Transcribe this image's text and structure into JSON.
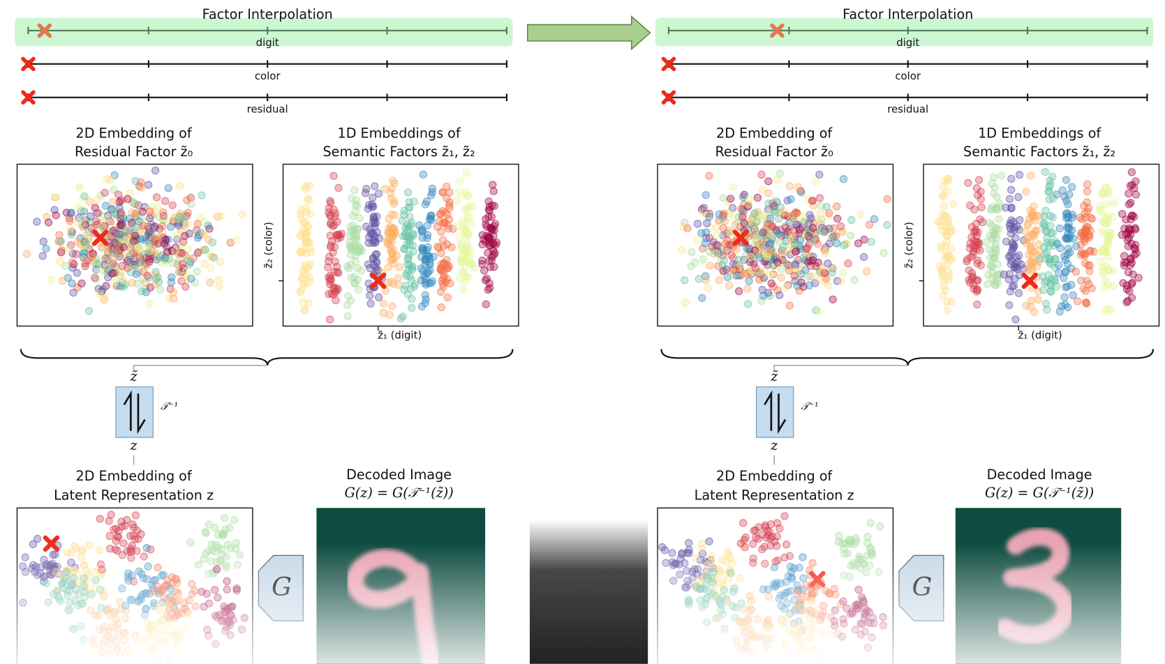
{
  "panels": [
    {
      "title": "Factor Interpolation",
      "sliders": [
        "digit",
        "color",
        "residual"
      ],
      "residual_embedding": {
        "title": [
          "2D Embedding of",
          "Residual Factor z̃₀"
        ]
      },
      "semantic_embedding": {
        "title": [
          "1D Embeddings of",
          "Semantic Factors z̃₁, z̃₂"
        ],
        "y_label": "z̃₂ (color)",
        "x_label": "z̃₁ (digit)"
      },
      "flow": {
        "top": "z̃",
        "operator": "𝒯⁻¹",
        "bottom": "z"
      },
      "latent_embedding": {
        "title": [
          "2D Embedding of",
          "Latent Representation z"
        ]
      },
      "generator": "G",
      "decoded": {
        "title": [
          "Decoded Image",
          "G(z) = G(𝒯⁻¹(z̃))"
        ]
      }
    },
    {
      "title": "Factor Interpolation",
      "sliders": [
        "digit",
        "color",
        "residual"
      ],
      "residual_embedding": {
        "title": [
          "2D Embedding of",
          "Residual Factor z̃₀"
        ]
      },
      "semantic_embedding": {
        "title": [
          "1D Embeddings of",
          "Semantic Factors z̃₁, z̃₂"
        ],
        "y_label": "z̃₂ (color)",
        "x_label": "z̃₁ (digit)"
      },
      "flow": {
        "top": "z̃",
        "operator": "𝒯⁻¹",
        "bottom": "z"
      },
      "latent_embedding": {
        "title": [
          "2D Embedding of",
          "Latent Representation z"
        ]
      },
      "generator": "G",
      "decoded": {
        "title": [
          "Decoded Image",
          "G(z) = G(𝒯⁻¹(z̃))"
        ]
      }
    }
  ]
}
